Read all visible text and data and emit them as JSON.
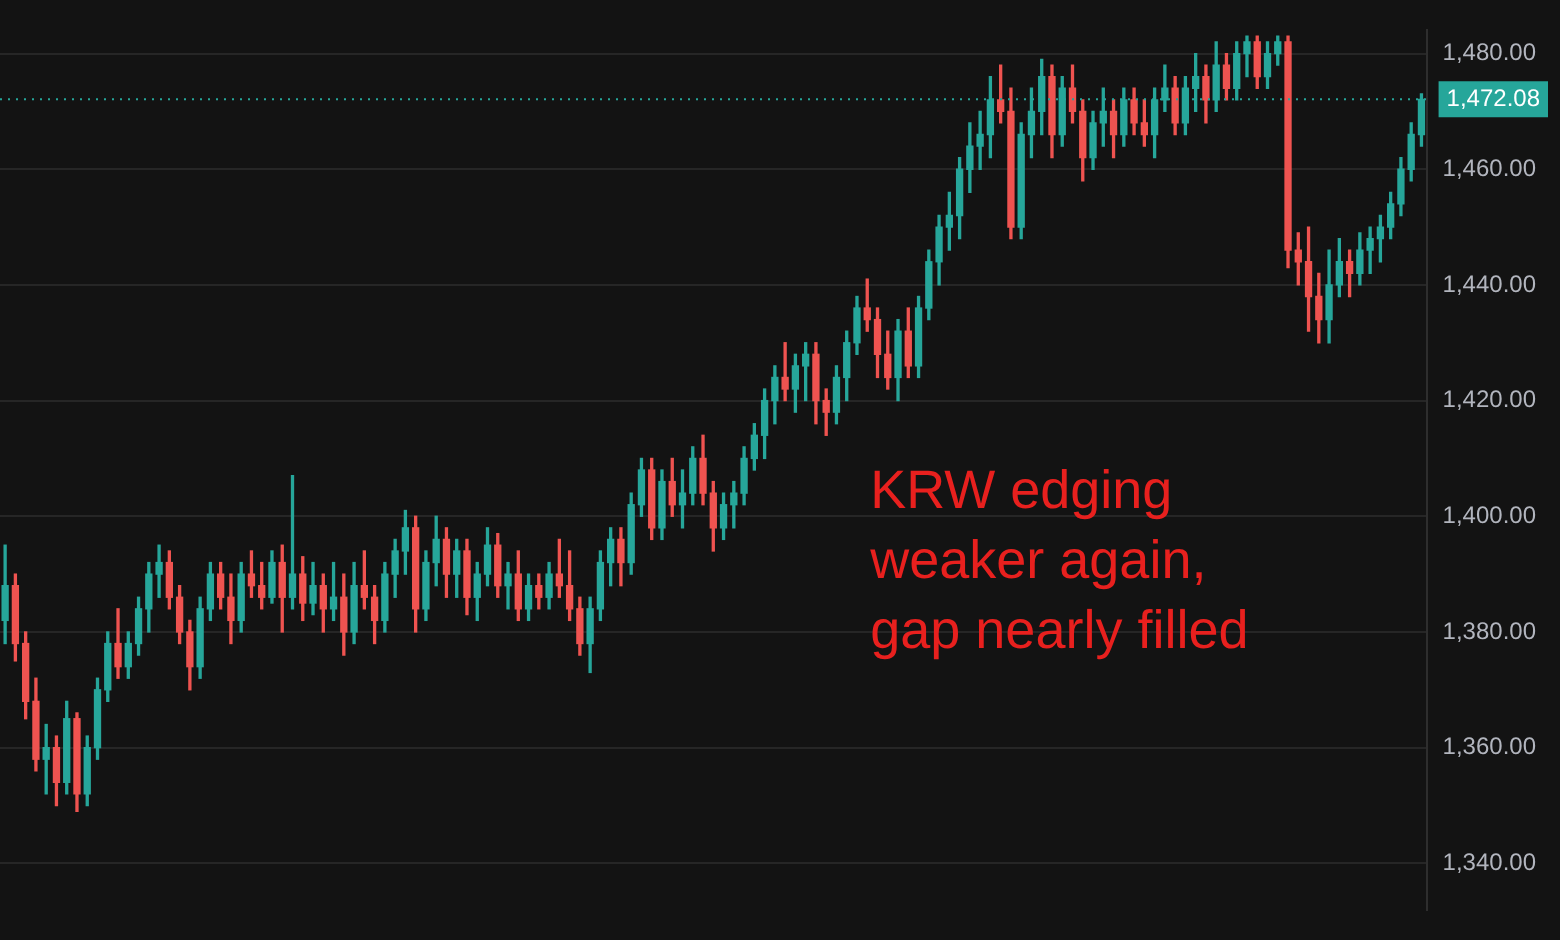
{
  "chart_data": {
    "type": "candlestick",
    "categories": [
      null,
      null,
      null,
      null,
      null,
      null,
      null,
      null,
      null,
      null,
      null,
      null,
      null,
      null,
      null,
      null,
      null,
      null,
      null,
      null,
      null,
      null,
      null,
      null,
      null,
      null,
      null,
      null,
      null,
      null,
      null,
      null,
      null,
      null,
      null,
      null,
      null,
      null,
      null,
      null,
      null,
      null,
      null,
      null,
      null,
      null,
      null,
      null,
      null,
      null,
      null,
      null,
      null,
      null,
      null,
      null,
      null,
      null,
      null,
      null,
      null,
      null,
      null,
      null,
      null,
      null,
      null,
      null,
      null,
      null,
      null,
      null,
      null,
      null,
      null,
      null,
      null,
      null,
      null,
      null,
      null,
      null,
      null,
      null,
      null,
      null,
      null,
      null,
      null,
      null,
      null,
      null,
      null,
      null,
      null,
      null,
      null,
      null,
      null,
      null,
      null,
      null,
      null,
      null,
      null,
      null,
      null,
      null,
      null,
      null,
      null,
      null,
      null,
      null,
      null,
      null,
      null,
      null,
      null,
      null,
      null,
      null,
      null,
      null,
      null,
      null,
      null,
      null,
      null,
      null,
      null,
      null,
      null,
      null,
      null,
      null,
      null,
      null,
      null
    ],
    "ohlc": [
      [
        1382,
        1395,
        1378,
        1388
      ],
      [
        1388,
        1390,
        1375,
        1378
      ],
      [
        1378,
        1380,
        1365,
        1368
      ],
      [
        1368,
        1372,
        1356,
        1358
      ],
      [
        1358,
        1364,
        1352,
        1360
      ],
      [
        1360,
        1362,
        1350,
        1354
      ],
      [
        1354,
        1368,
        1352,
        1365
      ],
      [
        1365,
        1366,
        1349,
        1352
      ],
      [
        1352,
        1362,
        1350,
        1360
      ],
      [
        1360,
        1372,
        1358,
        1370
      ],
      [
        1370,
        1380,
        1368,
        1378
      ],
      [
        1378,
        1384,
        1372,
        1374
      ],
      [
        1374,
        1380,
        1372,
        1378
      ],
      [
        1378,
        1386,
        1376,
        1384
      ],
      [
        1384,
        1392,
        1380,
        1390
      ],
      [
        1390,
        1395,
        1386,
        1392
      ],
      [
        1392,
        1394,
        1384,
        1386
      ],
      [
        1386,
        1388,
        1378,
        1380
      ],
      [
        1380,
        1382,
        1370,
        1374
      ],
      [
        1374,
        1386,
        1372,
        1384
      ],
      [
        1384,
        1392,
        1382,
        1390
      ],
      [
        1390,
        1392,
        1384,
        1386
      ],
      [
        1386,
        1390,
        1378,
        1382
      ],
      [
        1382,
        1392,
        1380,
        1390
      ],
      [
        1390,
        1394,
        1386,
        1388
      ],
      [
        1388,
        1392,
        1384,
        1386
      ],
      [
        1386,
        1394,
        1385,
        1392
      ],
      [
        1392,
        1395,
        1380,
        1386
      ],
      [
        1386,
        1407,
        1384,
        1390
      ],
      [
        1390,
        1393,
        1382,
        1385
      ],
      [
        1385,
        1392,
        1383,
        1388
      ],
      [
        1388,
        1390,
        1380,
        1384
      ],
      [
        1384,
        1392,
        1382,
        1386
      ],
      [
        1386,
        1390,
        1376,
        1380
      ],
      [
        1380,
        1392,
        1378,
        1388
      ],
      [
        1388,
        1394,
        1384,
        1386
      ],
      [
        1386,
        1388,
        1378,
        1382
      ],
      [
        1382,
        1392,
        1380,
        1390
      ],
      [
        1390,
        1396,
        1386,
        1394
      ],
      [
        1394,
        1401,
        1390,
        1398
      ],
      [
        1398,
        1400,
        1380,
        1384
      ],
      [
        1384,
        1394,
        1382,
        1392
      ],
      [
        1392,
        1400,
        1388,
        1396
      ],
      [
        1396,
        1398,
        1386,
        1390
      ],
      [
        1390,
        1396,
        1386,
        1394
      ],
      [
        1394,
        1396,
        1383,
        1386
      ],
      [
        1386,
        1392,
        1382,
        1390
      ],
      [
        1390,
        1398,
        1388,
        1395
      ],
      [
        1395,
        1397,
        1386,
        1388
      ],
      [
        1388,
        1392,
        1384,
        1390
      ],
      [
        1390,
        1394,
        1382,
        1384
      ],
      [
        1384,
        1390,
        1382,
        1388
      ],
      [
        1388,
        1390,
        1384,
        1386
      ],
      [
        1386,
        1392,
        1384,
        1390
      ],
      [
        1390,
        1396,
        1386,
        1388
      ],
      [
        1388,
        1394,
        1382,
        1384
      ],
      [
        1384,
        1386,
        1376,
        1378
      ],
      [
        1378,
        1386,
        1373,
        1384
      ],
      [
        1384,
        1394,
        1382,
        1392
      ],
      [
        1392,
        1398,
        1388,
        1396
      ],
      [
        1396,
        1398,
        1388,
        1392
      ],
      [
        1392,
        1404,
        1390,
        1402
      ],
      [
        1402,
        1410,
        1400,
        1408
      ],
      [
        1408,
        1410,
        1396,
        1398
      ],
      [
        1398,
        1408,
        1396,
        1406
      ],
      [
        1406,
        1410,
        1400,
        1402
      ],
      [
        1402,
        1408,
        1398,
        1404
      ],
      [
        1404,
        1412,
        1402,
        1410
      ],
      [
        1410,
        1414,
        1402,
        1404
      ],
      [
        1404,
        1406,
        1394,
        1398
      ],
      [
        1398,
        1404,
        1396,
        1402
      ],
      [
        1402,
        1406,
        1398,
        1404
      ],
      [
        1404,
        1412,
        1402,
        1410
      ],
      [
        1410,
        1416,
        1408,
        1414
      ],
      [
        1414,
        1422,
        1410,
        1420
      ],
      [
        1420,
        1426,
        1416,
        1424
      ],
      [
        1424,
        1430,
        1420,
        1422
      ],
      [
        1422,
        1428,
        1418,
        1426
      ],
      [
        1426,
        1430,
        1420,
        1428
      ],
      [
        1428,
        1430,
        1416,
        1420
      ],
      [
        1420,
        1422,
        1414,
        1418
      ],
      [
        1418,
        1426,
        1416,
        1424
      ],
      [
        1424,
        1432,
        1420,
        1430
      ],
      [
        1430,
        1438,
        1428,
        1436
      ],
      [
        1436,
        1441,
        1432,
        1434
      ],
      [
        1434,
        1436,
        1424,
        1428
      ],
      [
        1428,
        1432,
        1422,
        1424
      ],
      [
        1424,
        1434,
        1420,
        1432
      ],
      [
        1432,
        1436,
        1424,
        1426
      ],
      [
        1426,
        1438,
        1424,
        1436
      ],
      [
        1436,
        1446,
        1434,
        1444
      ],
      [
        1444,
        1452,
        1440,
        1450
      ],
      [
        1450,
        1456,
        1446,
        1452
      ],
      [
        1452,
        1462,
        1448,
        1460
      ],
      [
        1460,
        1468,
        1456,
        1464
      ],
      [
        1464,
        1470,
        1460,
        1466
      ],
      [
        1466,
        1476,
        1462,
        1472
      ],
      [
        1472,
        1478,
        1468,
        1470
      ],
      [
        1470,
        1474,
        1448,
        1450
      ],
      [
        1450,
        1468,
        1448,
        1466
      ],
      [
        1466,
        1474,
        1462,
        1470
      ],
      [
        1470,
        1479,
        1466,
        1476
      ],
      [
        1476,
        1478,
        1462,
        1466
      ],
      [
        1466,
        1476,
        1464,
        1474
      ],
      [
        1474,
        1478,
        1468,
        1470
      ],
      [
        1470,
        1472,
        1458,
        1462
      ],
      [
        1462,
        1470,
        1460,
        1468
      ],
      [
        1468,
        1474,
        1464,
        1470
      ],
      [
        1470,
        1472,
        1462,
        1466
      ],
      [
        1466,
        1474,
        1464,
        1472
      ],
      [
        1472,
        1474,
        1466,
        1468
      ],
      [
        1468,
        1472,
        1464,
        1466
      ],
      [
        1466,
        1474,
        1462,
        1472
      ],
      [
        1472,
        1478,
        1470,
        1474
      ],
      [
        1474,
        1476,
        1466,
        1468
      ],
      [
        1468,
        1476,
        1466,
        1474
      ],
      [
        1474,
        1480,
        1470,
        1476
      ],
      [
        1476,
        1478,
        1468,
        1472
      ],
      [
        1472,
        1482,
        1470,
        1478
      ],
      [
        1478,
        1480,
        1472,
        1474
      ],
      [
        1474,
        1482,
        1472,
        1480
      ],
      [
        1480,
        1483,
        1476,
        1482
      ],
      [
        1482,
        1483,
        1474,
        1476
      ],
      [
        1476,
        1482,
        1474,
        1480
      ],
      [
        1480,
        1483,
        1478,
        1482
      ],
      [
        1482,
        1483,
        1443,
        1446
      ],
      [
        1446,
        1449,
        1440,
        1444
      ],
      [
        1444,
        1450,
        1432,
        1438
      ],
      [
        1438,
        1442,
        1430,
        1434
      ],
      [
        1434,
        1446,
        1430,
        1440
      ],
      [
        1440,
        1448,
        1438,
        1444
      ],
      [
        1444,
        1446,
        1438,
        1442
      ],
      [
        1442,
        1449,
        1440,
        1446
      ],
      [
        1446,
        1450,
        1442,
        1448
      ],
      [
        1448,
        1452,
        1444,
        1450
      ],
      [
        1450,
        1456,
        1448,
        1454
      ],
      [
        1454,
        1462,
        1452,
        1460
      ],
      [
        1460,
        1468,
        1458,
        1466
      ],
      [
        1466,
        1473,
        1464,
        1472.08
      ]
    ],
    "ylim": [
      1332,
      1484
    ],
    "yticks": [
      {
        "value": 1340,
        "label": "1,340.00"
      },
      {
        "value": 1360,
        "label": "1,360.00"
      },
      {
        "value": 1380,
        "label": "1,380.00"
      },
      {
        "value": 1400,
        "label": "1,400.00"
      },
      {
        "value": 1420,
        "label": "1,420.00"
      },
      {
        "value": 1440,
        "label": "1,440.00"
      },
      {
        "value": 1460,
        "label": "1,460.00"
      },
      {
        "value": 1480,
        "label": "1,480.00"
      }
    ],
    "ref_lines": [
      {
        "axis": "y",
        "value": 1472.08,
        "label": "1,472.08",
        "color": "#26a69a",
        "line_style": "dotted"
      }
    ],
    "annotations": [
      "KRW edging weaker again, gap nearly filled"
    ],
    "grid": "y",
    "tick_labels": "y",
    "legend": false
  }
}
